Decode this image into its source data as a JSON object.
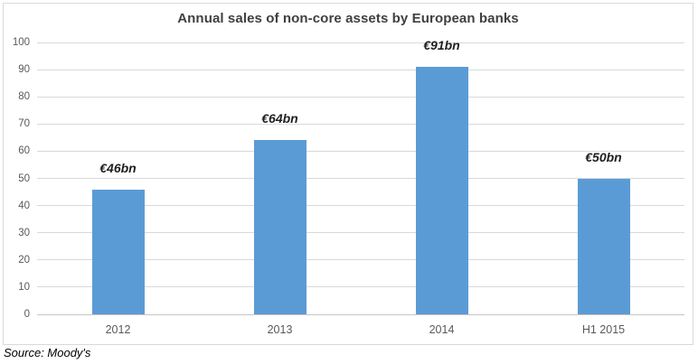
{
  "chart": {
    "source_note": "Source: Moody's"
  },
  "chart_data": {
    "type": "bar",
    "title": "Annual sales of non-core assets by European banks",
    "categories": [
      "2012",
      "2013",
      "2014",
      "H1 2015"
    ],
    "values": [
      46,
      64,
      91,
      50
    ],
    "data_labels": [
      "€46bn",
      "€64bn",
      "€91bn",
      "€50bn"
    ],
    "xlabel": "",
    "ylabel": "",
    "ylim": [
      0,
      100
    ],
    "yticks": [
      0,
      10,
      20,
      30,
      40,
      50,
      60,
      70,
      80,
      90,
      100
    ],
    "grid": true,
    "legend": "none",
    "colors": {
      "bar": "#5b9bd5",
      "gridline": "#d9d9d9",
      "axis_line": "#c6c6c6",
      "axis_text": "#595959",
      "title_text": "#404040",
      "data_label_text": "#1f1f1f",
      "border": "#d9d9d9",
      "background": "#ffffff"
    }
  }
}
